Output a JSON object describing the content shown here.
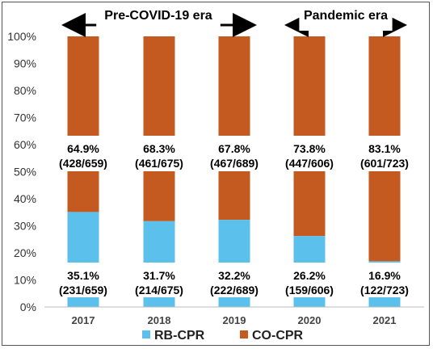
{
  "chart_data": {
    "type": "bar",
    "stacked": true,
    "categories": [
      "2017",
      "2018",
      "2019",
      "2020",
      "2021"
    ],
    "series": [
      {
        "name": "RB-CPR",
        "color": "#5BC0EB",
        "values": [
          35.1,
          31.7,
          32.2,
          26.2,
          16.9
        ],
        "labels": [
          [
            "35.1%",
            "(231/659)"
          ],
          [
            "31.7%",
            "(214/675)"
          ],
          [
            "32.2%",
            "(222/689)"
          ],
          [
            "26.2%",
            "(159/606)"
          ],
          [
            "16.9%",
            "(122/723)"
          ]
        ]
      },
      {
        "name": "CO-CPR",
        "color": "#C45A1F",
        "values": [
          64.9,
          68.3,
          67.8,
          73.8,
          83.1
        ],
        "labels": [
          [
            "64.9%",
            "(428/659)"
          ],
          [
            "68.3%",
            "(461/675)"
          ],
          [
            "67.8%",
            "(467/689)"
          ],
          [
            "73.8%",
            "(447/606)"
          ],
          [
            "83.1%",
            "(601/723)"
          ]
        ]
      }
    ],
    "yticks": [
      "0%",
      "10%",
      "20%",
      "30%",
      "40%",
      "50%",
      "60%",
      "70%",
      "80%",
      "90%",
      "100%"
    ],
    "ylim": [
      0,
      100
    ],
    "grid": false,
    "legend_position": "bottom",
    "annotations": [
      {
        "text": "Pre-COVID-19 era",
        "from": "2017",
        "to": "2019"
      },
      {
        "text": "Pandemic era",
        "from": "2020",
        "to": "2021"
      }
    ]
  }
}
